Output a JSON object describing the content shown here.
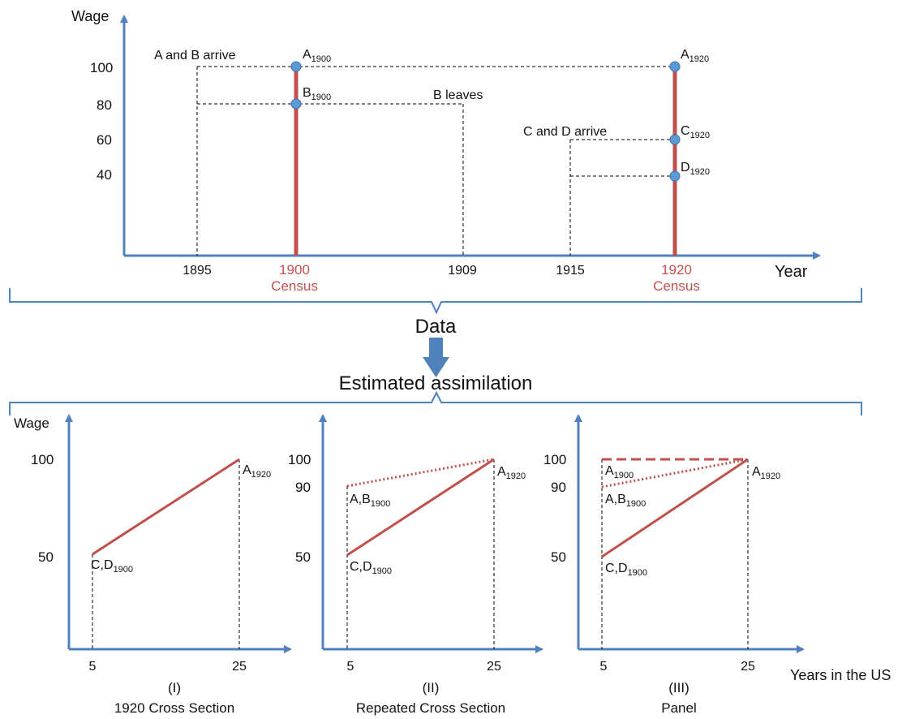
{
  "colors": {
    "axis": "#4f81bd",
    "accent": "#c0504d",
    "point": "#5b9bd5",
    "text": "#111111"
  },
  "top": {
    "y_axis_label": "Wage",
    "x_axis_label": "Year",
    "y_ticks": [
      "100",
      "80",
      "60",
      "40"
    ],
    "x_ticks": {
      "t1895": "1895",
      "t1900": "1900",
      "t1900_sub": "Census",
      "t1909": "1909",
      "t1915": "1915",
      "t1920": "1920",
      "t1920_sub": "Census"
    },
    "annotations": {
      "ab_arrive": "A and B arrive",
      "b_leaves": "B leaves",
      "cd_arrive": "C and D arrive"
    },
    "points": {
      "a1900": {
        "main": "A",
        "sub": "1900"
      },
      "b1900": {
        "main": "B",
        "sub": "1900"
      },
      "a1920": {
        "main": "A",
        "sub": "1920"
      },
      "c1920": {
        "main": "C",
        "sub": "1920"
      },
      "d1920": {
        "main": "D",
        "sub": "1920"
      }
    }
  },
  "middle": {
    "data_label": "Data",
    "estimated_label": "Estimated assimilation"
  },
  "panels": {
    "y_axis_label": "Wage",
    "x_axis_label": "Years in the US",
    "p1": {
      "title_num": "(I)",
      "title": "1920 Cross Section",
      "y_ticks": [
        "100",
        "50"
      ],
      "x_ticks": [
        "5",
        "25"
      ],
      "labels": {
        "a1920": {
          "main": "A",
          "sub": "1920"
        },
        "cd1900": {
          "main": "C,D",
          "sub": "1900"
        }
      }
    },
    "p2": {
      "title_num": "(II)",
      "title": "Repeated Cross Section",
      "y_ticks": [
        "100",
        "90",
        "50"
      ],
      "x_ticks": [
        "5",
        "25"
      ],
      "labels": {
        "a1920": {
          "main": "A",
          "sub": "1920"
        },
        "ab1900": {
          "main": "A,B",
          "sub": "1900"
        },
        "cd1900": {
          "main": "C,D",
          "sub": "1900"
        }
      }
    },
    "p3": {
      "title_num": "(III)",
      "title": "Panel",
      "y_ticks": [
        "100",
        "90",
        "50"
      ],
      "x_ticks": [
        "5",
        "25"
      ],
      "labels": {
        "a1920": {
          "main": "A",
          "sub": "1920"
        },
        "a1900": {
          "main": "A",
          "sub": "1900"
        },
        "ab1900": {
          "main": "A,B",
          "sub": "1900"
        },
        "cd1900": {
          "main": "C,D",
          "sub": "1900"
        }
      }
    }
  }
}
